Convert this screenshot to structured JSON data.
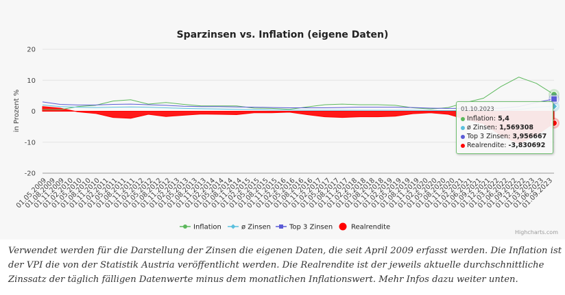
{
  "chart_data": {
    "type": "line",
    "title": "Sparzinsen vs. Inflation (eigene Daten)",
    "ylabel": "in Prozent %",
    "ylim": [
      -20,
      20
    ],
    "yticks": [
      20,
      10,
      0,
      -10,
      -20
    ],
    "xticks": [
      "01.05.2009",
      "01.08.2009",
      "01.11.2009",
      "01.02.2010",
      "01.05.2010",
      "01.08.2010",
      "01.11.2010",
      "01.02.2011",
      "01.05.2011",
      "01.08.2011",
      "01.11.2011",
      "01.02.2012",
      "01.05.2012",
      "01.08.2012",
      "01.11.2012",
      "01.02.2013",
      "01.05.2013",
      "01.08.2013",
      "01.11.2013",
      "01.02.2014",
      "01.05.2014",
      "01.08.2014",
      "01.11.2014",
      "01.02.2015",
      "01.05.2015",
      "01.08.2015",
      "01.11.2015",
      "01.02.2016",
      "01.05.2016",
      "01.08.2016",
      "01.11.2016",
      "01.02.2017",
      "01.05.2017",
      "01.08.2017",
      "01.11.2017",
      "01.02.2018",
      "01.05.2018",
      "01.08.2018",
      "01.11.2018",
      "01.02.2019",
      "01.05.2019",
      "01.08.2019",
      "01.11.2019",
      "01.02.2020",
      "01.05.2020",
      "01.08.2020",
      "01.11.2020",
      "01.02.2021",
      "01.06.2021",
      "01.09.2021",
      "01.12.2021",
      "01.03.2022",
      "01.06.2022",
      "01.09.2022",
      "01.12.2022",
      "01.03.2023",
      "01.06.2023",
      "01.09.2023"
    ],
    "x": [
      "05.2009",
      "11.2009",
      "05.2010",
      "11.2010",
      "05.2011",
      "11.2011",
      "05.2012",
      "11.2012",
      "05.2013",
      "11.2013",
      "05.2014",
      "11.2014",
      "05.2015",
      "11.2015",
      "05.2016",
      "11.2016",
      "05.2017",
      "11.2017",
      "05.2018",
      "11.2018",
      "05.2019",
      "11.2019",
      "05.2020",
      "11.2020",
      "05.2021",
      "11.2021",
      "05.2022",
      "11.2022",
      "05.2023",
      "10.2023"
    ],
    "series": [
      {
        "name": "Inflation",
        "color": "#5cb85c",
        "marker": "circle",
        "values": [
          0.5,
          0.5,
          1.5,
          1.9,
          3.3,
          3.7,
          2.3,
          2.8,
          2.2,
          1.7,
          1.7,
          1.7,
          1.0,
          0.9,
          0.6,
          1.4,
          2.1,
          2.3,
          2.1,
          2.1,
          1.9,
          1.1,
          0.7,
          1.2,
          2.8,
          4.2,
          8.0,
          11.0,
          9.0,
          5.4
        ]
      },
      {
        "name": "ø Zinsen",
        "color": "#5bc0de",
        "marker": "diamond",
        "values": [
          2.0,
          1.5,
          1.3,
          1.2,
          1.3,
          1.4,
          1.3,
          1.1,
          0.9,
          0.8,
          0.7,
          0.6,
          0.5,
          0.4,
          0.35,
          0.3,
          0.3,
          0.3,
          0.3,
          0.3,
          0.3,
          0.3,
          0.25,
          0.2,
          0.2,
          0.2,
          0.2,
          0.5,
          1.3,
          1.569308
        ]
      },
      {
        "name": "Top 3 Zinsen",
        "color": "#5b5bd6",
        "marker": "square",
        "values": [
          3.0,
          2.2,
          2.0,
          2.0,
          2.2,
          2.3,
          2.1,
          1.9,
          1.6,
          1.5,
          1.5,
          1.4,
          1.3,
          1.2,
          1.1,
          1.1,
          1.1,
          1.2,
          1.3,
          1.3,
          1.3,
          1.2,
          1.0,
          0.9,
          0.9,
          0.9,
          1.0,
          1.5,
          2.8,
          3.956667
        ]
      },
      {
        "name": "Realrendite",
        "color": "#ff0000",
        "marker": "circle",
        "type": "area",
        "values": [
          1.5,
          1.0,
          -0.2,
          -0.7,
          -2.0,
          -2.3,
          -1.0,
          -1.7,
          -1.3,
          -0.9,
          -1.0,
          -1.1,
          -0.5,
          -0.5,
          -0.3,
          -1.1,
          -1.8,
          -2.0,
          -1.8,
          -1.8,
          -1.6,
          -0.8,
          -0.5,
          -1.0,
          -2.6,
          -4.0,
          -7.8,
          -10.5,
          -7.7,
          -3.830692
        ]
      }
    ],
    "legend": {
      "position": "bottom"
    },
    "grid": true,
    "tooltip": {
      "date": "01.10.2023",
      "rows": [
        {
          "label": "Inflation",
          "value": "5,4",
          "color": "#5cb85c"
        },
        {
          "label": "ø Zinsen",
          "value": "1,569308",
          "color": "#5bc0de"
        },
        {
          "label": "Top 3 Zinsen",
          "value": "3,956667",
          "color": "#5b5bd6"
        },
        {
          "label": "Realrendite",
          "value": "-3,830692",
          "color": "#ff0000"
        }
      ]
    },
    "credits": "Highcharts.com"
  },
  "caption": "Verwendet werden für die Darstellung der Zinsen die eigenen Daten, die seit April 2009 erfasst werden. Die Inflation ist der VPI die von der Statistik Austria veröffentlicht werden. Die Realrendite ist der jeweils aktuelle durchschnittliche Zinssatz der täglich fälligen Datenwerte minus dem monatlichen Inflationswert. Mehr Infos dazu weiter unten."
}
